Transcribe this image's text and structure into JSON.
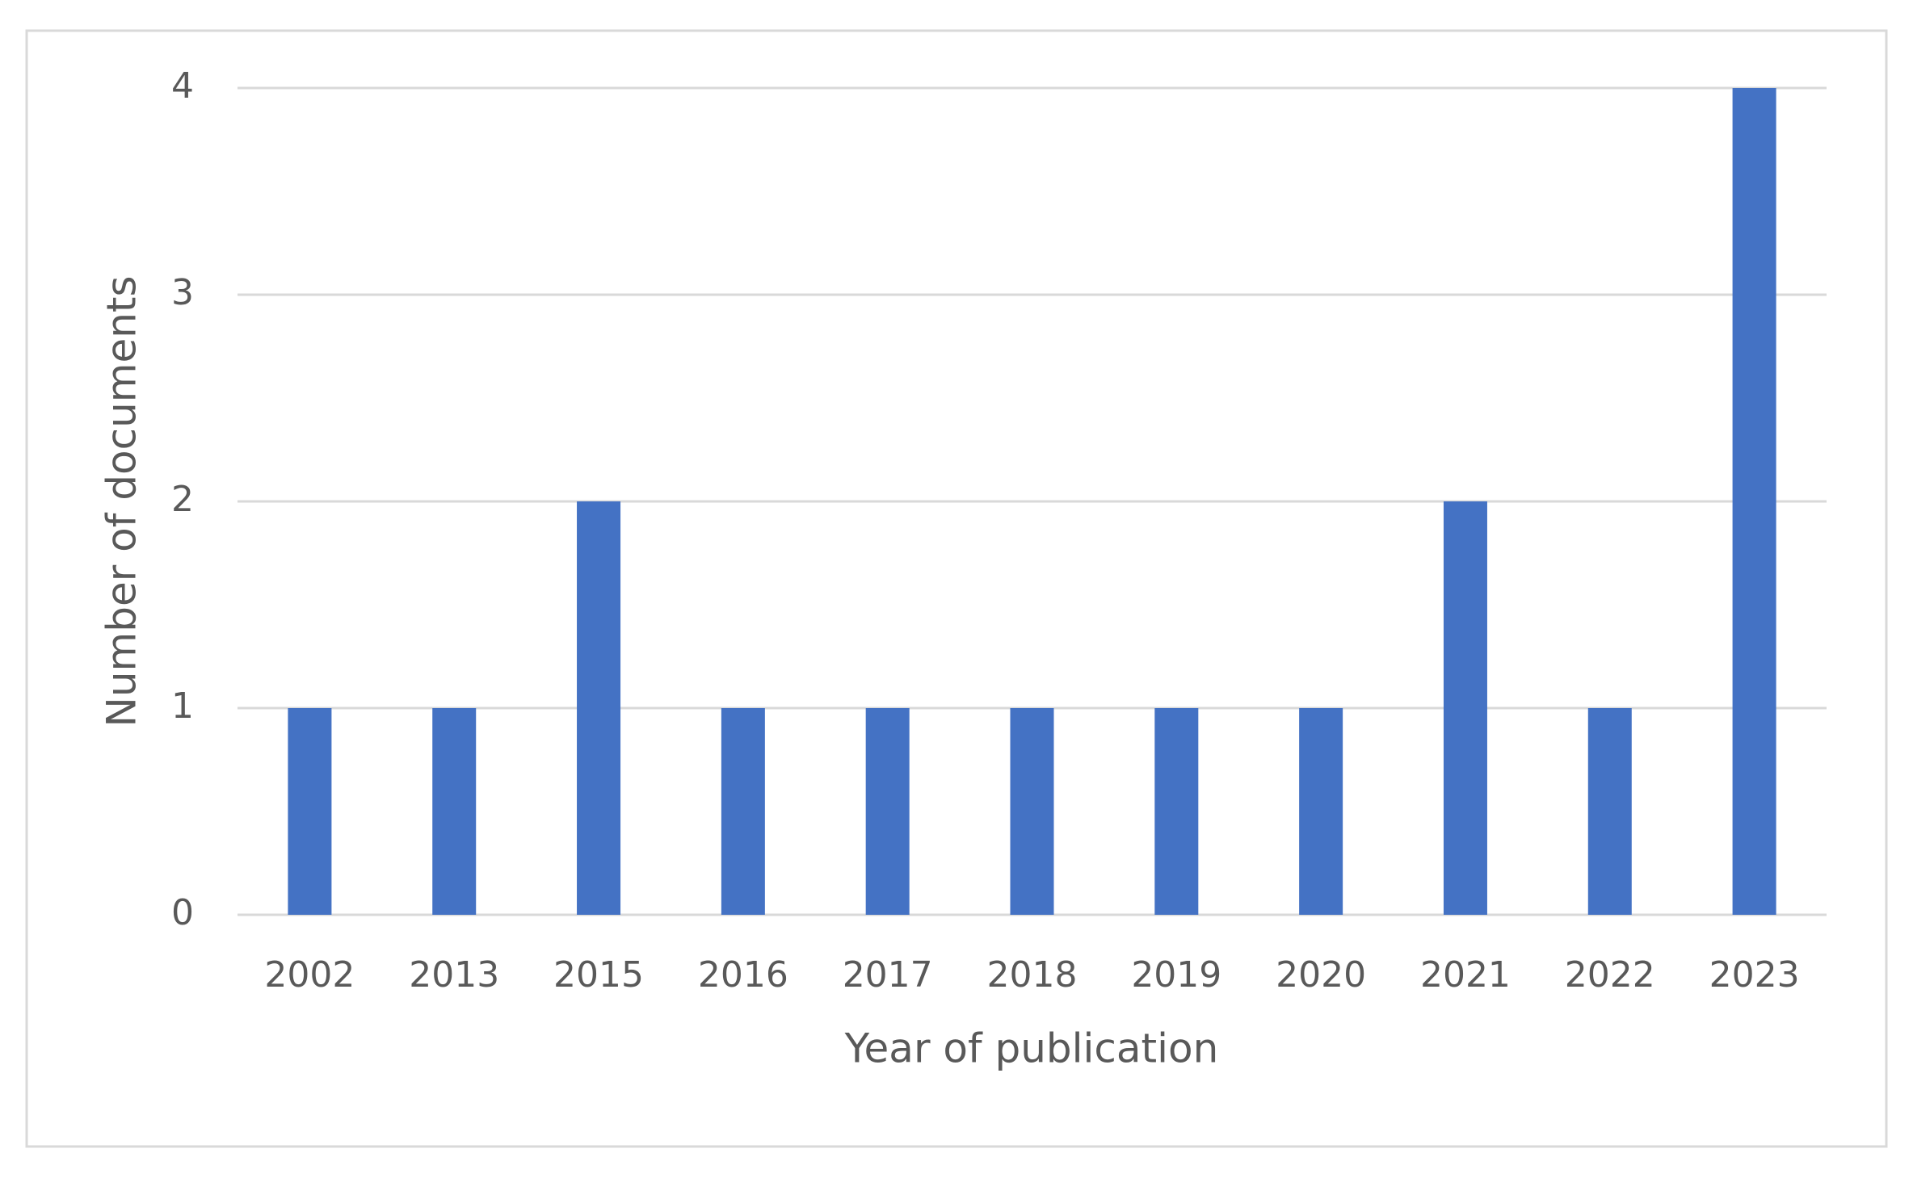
{
  "chart_data": {
    "type": "bar",
    "x_label": "Year of publication",
    "y_label": "Number of documents",
    "categories": [
      "2002",
      "2013",
      "2015",
      "2016",
      "2017",
      "2018",
      "2019",
      "2020",
      "2021",
      "2022",
      "2023"
    ],
    "values": [
      1,
      1,
      2,
      1,
      1,
      1,
      1,
      1,
      2,
      1,
      4
    ],
    "color": "#4472c4",
    "ylim": [
      0,
      4
    ],
    "yticks": [
      0,
      1,
      2,
      3,
      4
    ],
    "grid": true
  }
}
